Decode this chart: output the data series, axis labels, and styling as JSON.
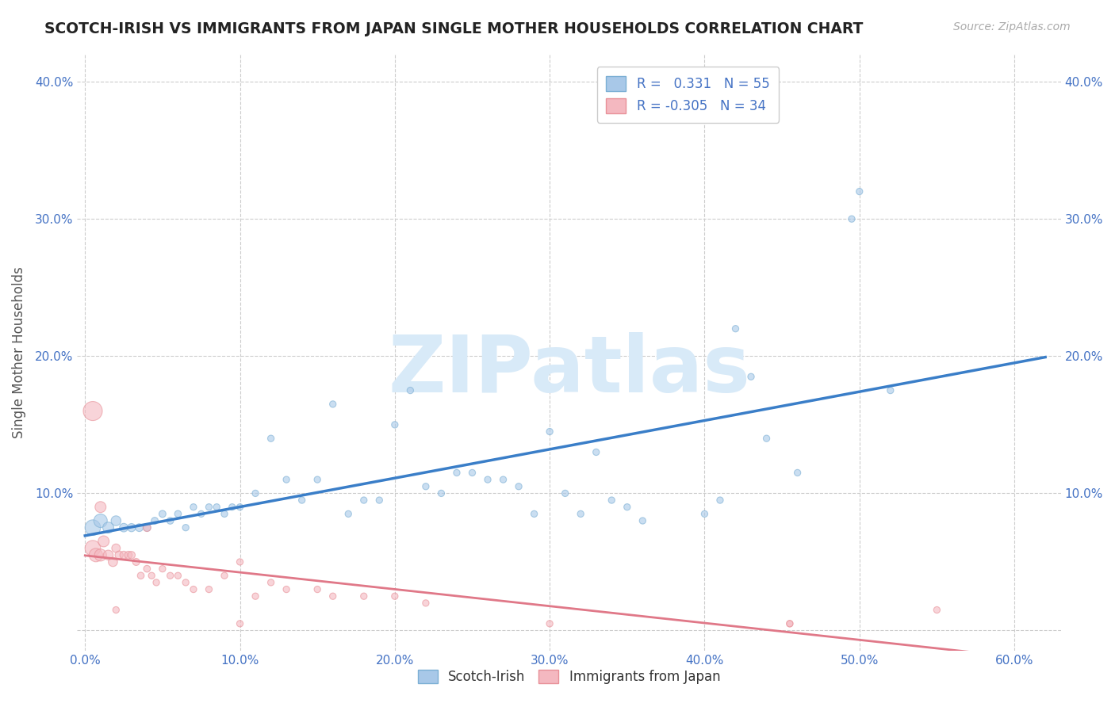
{
  "title": "SCOTCH-IRISH VS IMMIGRANTS FROM JAPAN SINGLE MOTHER HOUSEHOLDS CORRELATION CHART",
  "source": "Source: ZipAtlas.com",
  "xlabel_ticks": [
    0.0,
    0.1,
    0.2,
    0.3,
    0.4,
    0.5,
    0.6
  ],
  "ylabel_ticks": [
    0.0,
    0.1,
    0.2,
    0.3,
    0.4
  ],
  "xlabel_labels": [
    "0.0%",
    "10.0%",
    "20.0%",
    "30.0%",
    "40.0%",
    "50.0%",
    "60.0%"
  ],
  "ylabel_labels": [
    "",
    "10.0%",
    "20.0%",
    "30.0%",
    "40.0%"
  ],
  "xlim": [
    -0.005,
    0.63
  ],
  "ylim": [
    -0.015,
    0.42
  ],
  "ylabel": "Single Mother Households",
  "legend_label1": "Scotch-Irish",
  "legend_label2": "Immigrants from Japan",
  "r1": 0.331,
  "n1": 55,
  "r2": -0.305,
  "n2": 34,
  "color_blue": "#a8c8e8",
  "color_blue_edge": "#7bafd4",
  "color_blue_line": "#3a7ec8",
  "color_pink": "#f4b8c0",
  "color_pink_edge": "#e89098",
  "color_pink_line": "#e07888",
  "watermark": "ZIPatlas",
  "watermark_color": "#d8eaf8",
  "blue_x": [
    0.005,
    0.01,
    0.015,
    0.02,
    0.025,
    0.03,
    0.035,
    0.04,
    0.045,
    0.05,
    0.055,
    0.06,
    0.065,
    0.07,
    0.075,
    0.08,
    0.085,
    0.09,
    0.095,
    0.1,
    0.11,
    0.12,
    0.13,
    0.14,
    0.15,
    0.16,
    0.17,
    0.18,
    0.19,
    0.2,
    0.21,
    0.22,
    0.23,
    0.24,
    0.25,
    0.26,
    0.27,
    0.28,
    0.29,
    0.3,
    0.31,
    0.32,
    0.33,
    0.34,
    0.35,
    0.36,
    0.4,
    0.41,
    0.42,
    0.43,
    0.44,
    0.46,
    0.495,
    0.5,
    0.52
  ],
  "blue_y": [
    0.075,
    0.08,
    0.075,
    0.08,
    0.075,
    0.075,
    0.075,
    0.075,
    0.08,
    0.085,
    0.08,
    0.085,
    0.075,
    0.09,
    0.085,
    0.09,
    0.09,
    0.085,
    0.09,
    0.09,
    0.1,
    0.14,
    0.11,
    0.095,
    0.11,
    0.165,
    0.085,
    0.095,
    0.095,
    0.15,
    0.175,
    0.105,
    0.1,
    0.115,
    0.115,
    0.11,
    0.11,
    0.105,
    0.085,
    0.145,
    0.1,
    0.085,
    0.13,
    0.095,
    0.09,
    0.08,
    0.085,
    0.095,
    0.22,
    0.185,
    0.14,
    0.115,
    0.3,
    0.32,
    0.175
  ],
  "blue_sizes": [
    200,
    150,
    100,
    80,
    60,
    55,
    50,
    45,
    40,
    40,
    38,
    38,
    35,
    35,
    35,
    35,
    35,
    35,
    35,
    35,
    35,
    35,
    35,
    35,
    35,
    35,
    35,
    35,
    35,
    35,
    35,
    35,
    35,
    35,
    35,
    35,
    35,
    35,
    35,
    35,
    35,
    35,
    35,
    35,
    35,
    35,
    35,
    35,
    35,
    35,
    35,
    35,
    35,
    35,
    35
  ],
  "pink_x": [
    0.005,
    0.007,
    0.01,
    0.012,
    0.015,
    0.018,
    0.02,
    0.022,
    0.025,
    0.028,
    0.03,
    0.033,
    0.036,
    0.04,
    0.043,
    0.046,
    0.05,
    0.055,
    0.06,
    0.065,
    0.07,
    0.08,
    0.09,
    0.1,
    0.11,
    0.12,
    0.13,
    0.15,
    0.18,
    0.2,
    0.22,
    0.3,
    0.455,
    0.55
  ],
  "pink_y": [
    0.06,
    0.055,
    0.055,
    0.065,
    0.055,
    0.05,
    0.06,
    0.055,
    0.055,
    0.055,
    0.055,
    0.05,
    0.04,
    0.045,
    0.04,
    0.035,
    0.045,
    0.04,
    0.04,
    0.035,
    0.03,
    0.03,
    0.04,
    0.05,
    0.025,
    0.035,
    0.03,
    0.03,
    0.025,
    0.025,
    0.02,
    0.005,
    0.005,
    0.015
  ],
  "pink_sizes": [
    200,
    150,
    120,
    100,
    80,
    70,
    60,
    55,
    50,
    48,
    45,
    42,
    38,
    38,
    35,
    35,
    35,
    35,
    35,
    35,
    35,
    35,
    35,
    35,
    35,
    35,
    35,
    35,
    35,
    35,
    35,
    35,
    35,
    35
  ],
  "pink_extra_x": [
    0.005,
    0.01,
    0.02,
    0.04,
    0.1,
    0.16,
    0.455
  ],
  "pink_extra_y": [
    0.16,
    0.09,
    0.015,
    0.075,
    0.005,
    0.025,
    0.005
  ],
  "pink_extra_sizes": [
    300,
    100,
    35,
    50,
    35,
    35,
    35
  ]
}
